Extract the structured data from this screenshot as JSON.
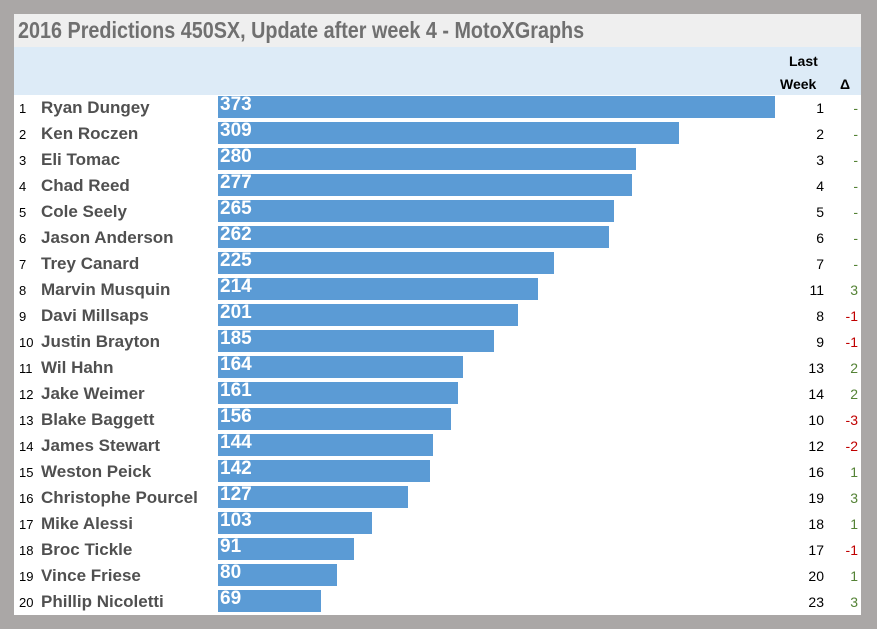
{
  "title": "2016 Predictions 450SX, Update after week 4 - MotoXGraphs",
  "header": {
    "last_week_line1": "Last",
    "last_week_line2": "Week",
    "delta": "Δ"
  },
  "colors": {
    "bar": "#5b9bd5",
    "positive": "#548235",
    "negative": "#c00000",
    "neutral": "#548235"
  },
  "chart_data": {
    "type": "bar",
    "orientation": "horizontal",
    "title": "2016 Predictions 450SX, Update after week 4 - MotoXGraphs",
    "categories": [
      "Ryan Dungey",
      "Ken Roczen",
      "Eli Tomac",
      "Chad Reed",
      "Cole Seely",
      "Jason Anderson",
      "Trey Canard",
      "Marvin Musquin",
      "Davi Millsaps",
      "Justin Brayton",
      "Wil Hahn",
      "Jake Weimer",
      "Blake Baggett",
      "James Stewart",
      "Weston Peick",
      "Christophe Pourcel",
      "Mike Alessi",
      "Broc Tickle",
      "Vince Friese",
      "Phillip Nicoletti"
    ],
    "ranks": [
      "1",
      "2",
      "3",
      "4",
      "5",
      "6",
      "7",
      "8",
      "9",
      "10",
      "11",
      "12",
      "13",
      "14",
      "15",
      "16",
      "17",
      "18",
      "19",
      "20"
    ],
    "values": [
      373,
      309,
      280,
      277,
      265,
      262,
      225,
      214,
      201,
      185,
      164,
      161,
      156,
      144,
      142,
      127,
      103,
      91,
      80,
      69
    ],
    "last_week": [
      "1",
      "2",
      "3",
      "4",
      "5",
      "6",
      "7",
      "11",
      "8",
      "9",
      "13",
      "14",
      "10",
      "12",
      "16",
      "19",
      "18",
      "17",
      "20",
      "23"
    ],
    "delta": [
      "-",
      "-",
      "-",
      "-",
      "-",
      "-",
      "-",
      "3",
      "-1",
      "-1",
      "2",
      "2",
      "-3",
      "-2",
      "1",
      "3",
      "1",
      "-1",
      "1",
      "3"
    ],
    "xlim": [
      0,
      373
    ]
  }
}
